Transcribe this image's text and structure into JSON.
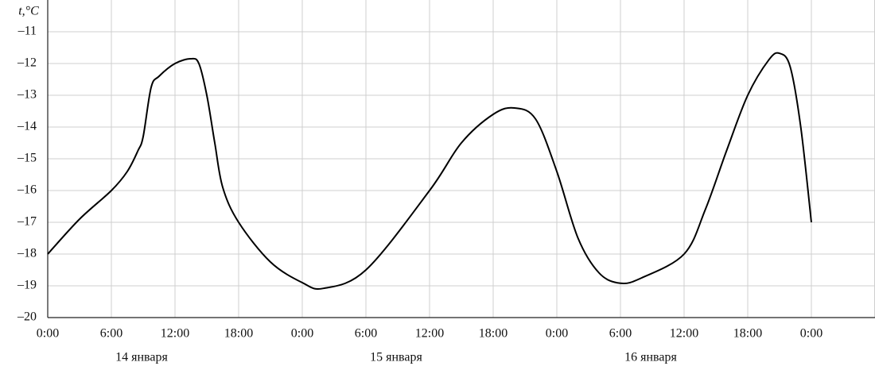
{
  "chart_data": {
    "type": "line",
    "y_label": "t,°C",
    "x": [
      0,
      3,
      6,
      7.5,
      8.5,
      9,
      9.75,
      10.5,
      12,
      13.5,
      14.25,
      15,
      15.75,
      16.5,
      18,
      21,
      24,
      26,
      30,
      36,
      39,
      42,
      44,
      46,
      48,
      50,
      52,
      54,
      56,
      60,
      62,
      64,
      66,
      68,
      69,
      70,
      71,
      72
    ],
    "series": [
      {
        "name": "t",
        "color": "#000000",
        "values": [
          -18,
          -16.9,
          -16,
          -15.4,
          -14.75,
          -14.3,
          -12.75,
          -12.4,
          -12,
          -11.85,
          -12,
          -13,
          -14.5,
          -15.9,
          -17,
          -18.25,
          -18.9,
          -19.08,
          -18.5,
          -16,
          -14.5,
          -13.6,
          -13.4,
          -13.75,
          -15.4,
          -17.5,
          -18.6,
          -18.92,
          -18.75,
          -18,
          -16.6,
          -14.75,
          -13,
          -11.88,
          -11.68,
          -12.1,
          -14,
          -17
        ]
      }
    ],
    "xlim": [
      0,
      78
    ],
    "ylim": [
      -20,
      -10
    ],
    "xticks": [
      {
        "value": 0,
        "label": "0:00"
      },
      {
        "value": 6,
        "label": "6:00"
      },
      {
        "value": 12,
        "label": "12:00"
      },
      {
        "value": 18,
        "label": "18:00"
      },
      {
        "value": 24,
        "label": "0:00"
      },
      {
        "value": 30,
        "label": "6:00"
      },
      {
        "value": 36,
        "label": "12:00"
      },
      {
        "value": 42,
        "label": "18:00"
      },
      {
        "value": 48,
        "label": "0:00"
      },
      {
        "value": 54,
        "label": "6:00"
      },
      {
        "value": 60,
        "label": "12:00"
      },
      {
        "value": 66,
        "label": "18:00"
      },
      {
        "value": 72,
        "label": "0:00"
      }
    ],
    "yticks": [
      {
        "value": -20,
        "label": "–20"
      },
      {
        "value": -19,
        "label": "–19"
      },
      {
        "value": -18,
        "label": "–18"
      },
      {
        "value": -17,
        "label": "–17"
      },
      {
        "value": -16,
        "label": "–16"
      },
      {
        "value": -15,
        "label": "–15"
      },
      {
        "value": -14,
        "label": "–14"
      },
      {
        "value": -13,
        "label": "–13"
      },
      {
        "value": -12,
        "label": "–12"
      },
      {
        "value": -11,
        "label": "–11"
      }
    ],
    "day_labels": [
      "14 января",
      "15 января",
      "16 января"
    ],
    "grid": true
  }
}
